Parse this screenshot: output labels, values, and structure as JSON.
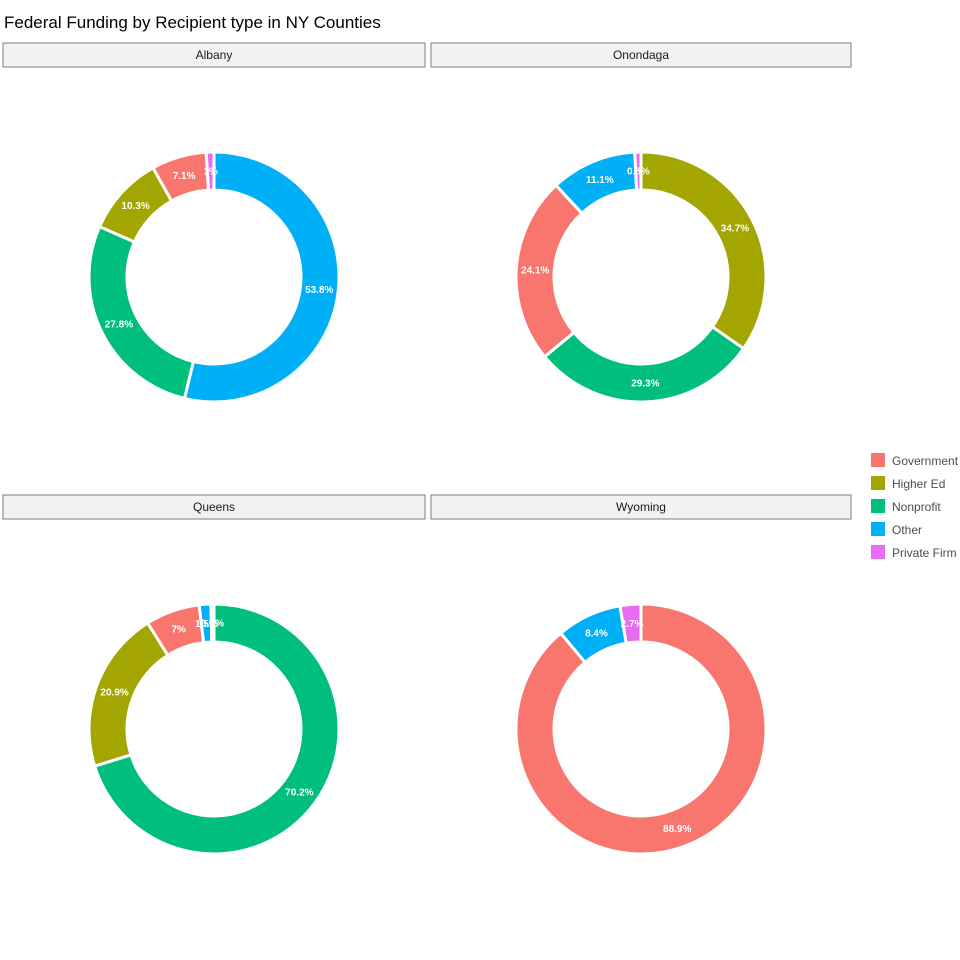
{
  "chart_data": {
    "type": "pie",
    "title": "Federal Funding by Recipient type in NY Counties",
    "legend_position": "right",
    "categories": [
      "Government",
      "Higher Ed",
      "Nonprofit",
      "Other",
      "Private Firm"
    ],
    "colors": {
      "Government": "#F8766D",
      "Higher Ed": "#A3A500",
      "Nonprofit": "#00BF7D",
      "Other": "#00B0F6",
      "Private Firm": "#E76BF3"
    },
    "panels": [
      {
        "name": "Albany",
        "slices": [
          {
            "category": "Other",
            "value": 53.8,
            "label": "53.8%"
          },
          {
            "category": "Nonprofit",
            "value": 27.8,
            "label": "27.8%"
          },
          {
            "category": "Higher Ed",
            "value": 10.3,
            "label": "10.3%"
          },
          {
            "category": "Government",
            "value": 7.1,
            "label": "7.1%"
          },
          {
            "category": "Private Firm",
            "value": 1.0,
            "label": "1%"
          }
        ]
      },
      {
        "name": "Onondaga",
        "slices": [
          {
            "category": "Higher Ed",
            "value": 34.7,
            "label": "34.7%"
          },
          {
            "category": "Nonprofit",
            "value": 29.3,
            "label": "29.3%"
          },
          {
            "category": "Government",
            "value": 24.1,
            "label": "24.1%"
          },
          {
            "category": "Other",
            "value": 11.1,
            "label": "11.1%"
          },
          {
            "category": "Private Firm",
            "value": 0.8,
            "label": "0.8%"
          }
        ]
      },
      {
        "name": "Queens",
        "slices": [
          {
            "category": "Nonprofit",
            "value": 70.2,
            "label": "70.2%"
          },
          {
            "category": "Higher Ed",
            "value": 20.9,
            "label": "20.9%"
          },
          {
            "category": "Government",
            "value": 7.0,
            "label": "7%"
          },
          {
            "category": "Other",
            "value": 1.5,
            "label": "1.5%"
          },
          {
            "category": "Private Firm",
            "value": 0.4,
            "label": "0.4%"
          }
        ]
      },
      {
        "name": "Wyoming",
        "slices": [
          {
            "category": "Government",
            "value": 88.9,
            "label": "88.9%"
          },
          {
            "category": "Other",
            "value": 8.4,
            "label": "8.4%"
          },
          {
            "category": "Private Firm",
            "value": 2.7,
            "label": "2.7%"
          }
        ]
      }
    ]
  }
}
